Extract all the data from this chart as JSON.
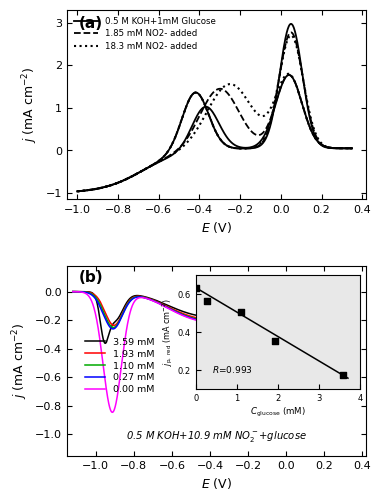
{
  "panel_a": {
    "label": "(a)",
    "xlim": [
      -1.05,
      0.42
    ],
    "ylim": [
      -1.15,
      3.3
    ],
    "xticks": [
      -1.0,
      -0.8,
      -0.6,
      -0.4,
      -0.2,
      0.0,
      0.2,
      0.4
    ],
    "yticks": [
      -1,
      0,
      1,
      2,
      3
    ],
    "xlabel": "E (V)",
    "ylabel": "j (mA cm-2)",
    "legend": [
      "0.5 M KOH+1mM Glucose",
      "1.85 mM NO2- added",
      "18.3 mM NO2- added"
    ],
    "line_styles": [
      "-",
      "--",
      ":"
    ],
    "line_colors": [
      "black",
      "black",
      "black"
    ]
  },
  "panel_b": {
    "label": "(b)",
    "xlim": [
      -1.15,
      0.42
    ],
    "ylim": [
      -1.15,
      0.18
    ],
    "xticks": [
      -1.0,
      -0.8,
      -0.6,
      -0.4,
      -0.2,
      0.0,
      0.2,
      0.4
    ],
    "yticks": [
      -1.0,
      -0.8,
      -0.6,
      -0.4,
      -0.2,
      0.0
    ],
    "xlabel": "E (V)",
    "ylabel": "j (mA cm-2)",
    "legend_labels": [
      "3.59 mM",
      "1.93 mM",
      "1.10 mM",
      "0.27 mM",
      "0.00 mM"
    ],
    "legend_colors": [
      "black",
      "red",
      "#00aa00",
      "blue",
      "magenta"
    ],
    "annotation": "0.5 M KOH+10.9 mM NO2-+glucose"
  },
  "inset": {
    "xlim": [
      0,
      4
    ],
    "ylim": [
      0.1,
      0.7
    ],
    "yticks": [
      0.2,
      0.4,
      0.6
    ],
    "xticks": [
      0,
      1,
      2,
      3,
      4
    ],
    "data_x": [
      0.0,
      0.27,
      1.1,
      1.93,
      3.59
    ],
    "data_y": [
      0.635,
      0.565,
      0.505,
      0.355,
      0.175
    ],
    "fit_x": [
      -0.1,
      3.7
    ],
    "fit_y": [
      0.648,
      0.158
    ],
    "annotation": "R=0.993"
  }
}
